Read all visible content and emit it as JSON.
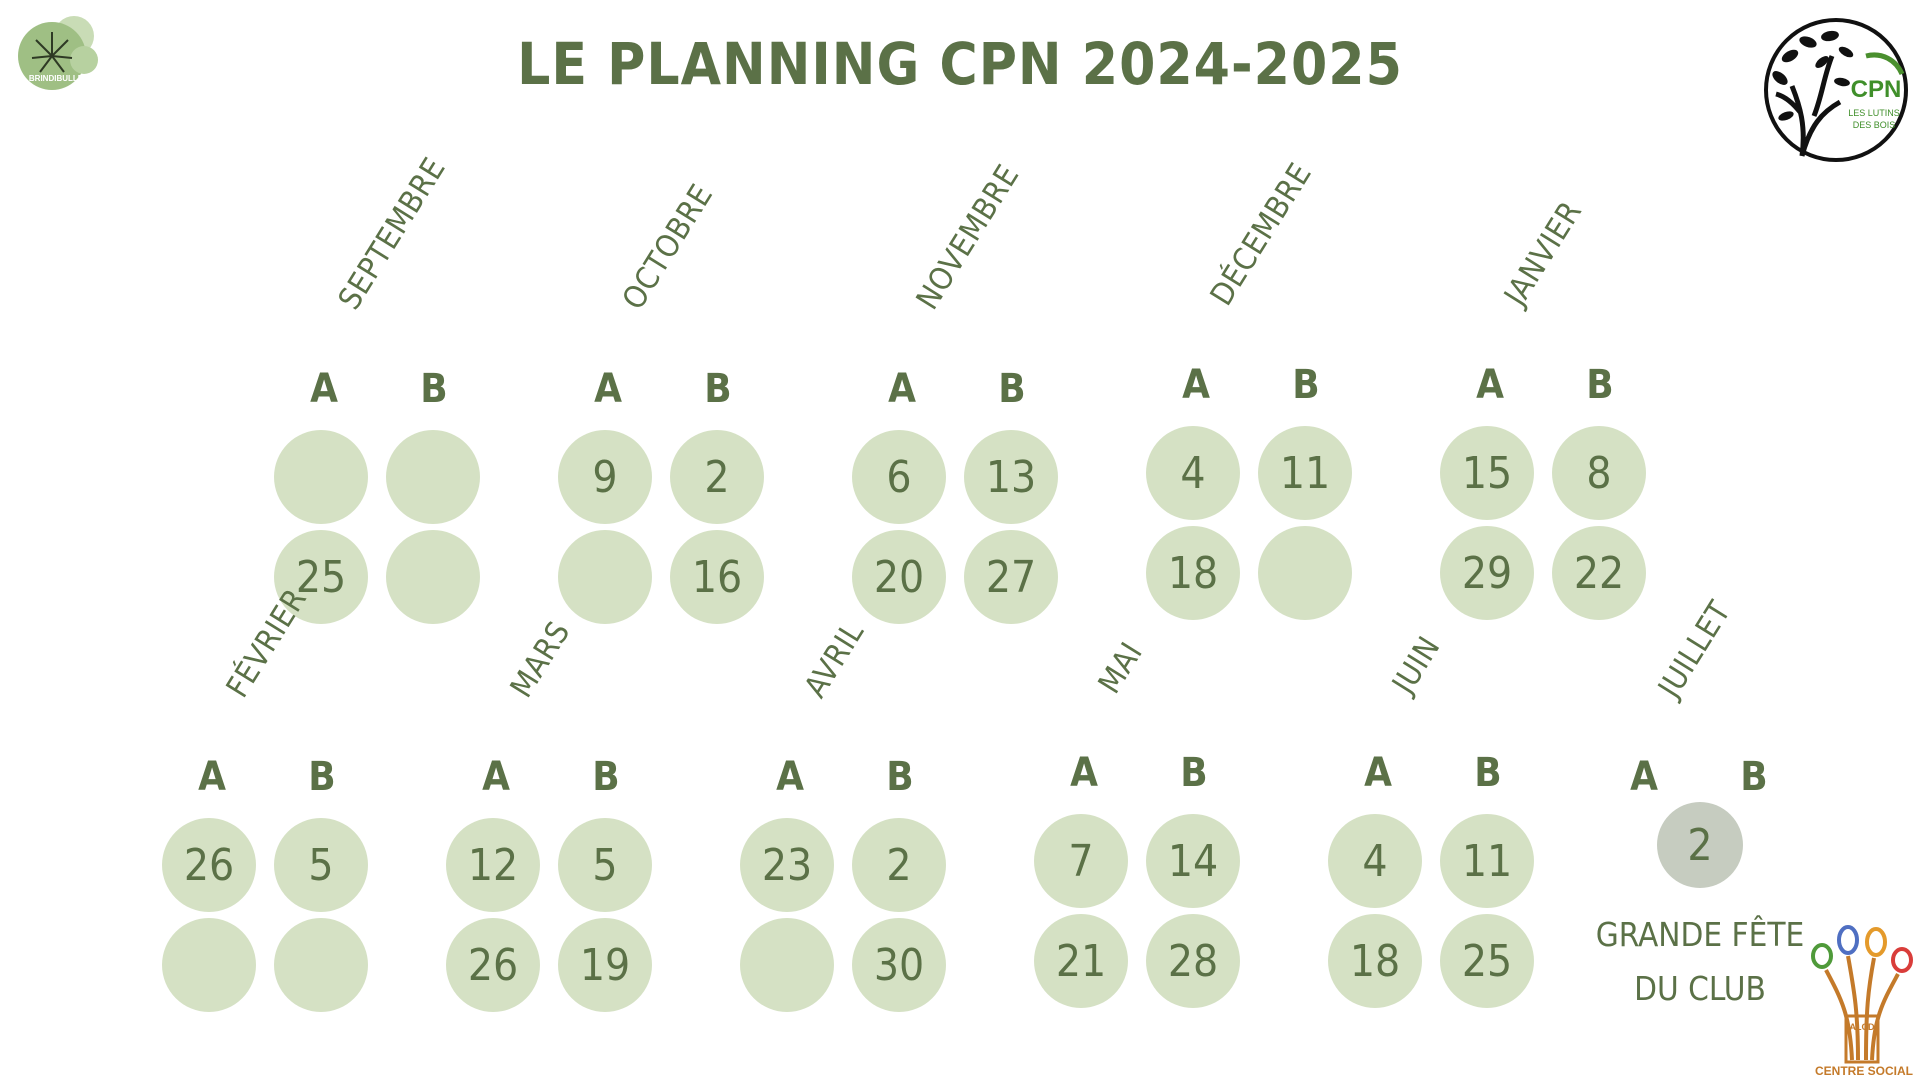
{
  "title": "LE PLANNING CPN 2024-2025",
  "logos": {
    "left_text": "BRINDIBULLE",
    "right_big": "CPN",
    "right_small_1": "LES LUTINS",
    "right_small_2": "DES BOIS",
    "bottom_mark": "ALCD",
    "bottom_text": "CENTRE SOCIAL"
  },
  "columns": {
    "a": "A",
    "b": "B"
  },
  "months": [
    {
      "name": "SEPTEMBRE",
      "a1": "",
      "b1": "",
      "a2": "25",
      "b2": ""
    },
    {
      "name": "OCTOBRE",
      "a1": "9",
      "b1": "2",
      "a2": "",
      "b2": "16"
    },
    {
      "name": "NOVEMBRE",
      "a1": "6",
      "b1": "13",
      "a2": "20",
      "b2": "27"
    },
    {
      "name": "DÉCEMBRE",
      "a1": "4",
      "b1": "11",
      "a2": "18",
      "b2": ""
    },
    {
      "name": "JANVIER",
      "a1": "15",
      "b1": "8",
      "a2": "29",
      "b2": "22"
    },
    {
      "name": "FÉVRIER",
      "a1": "26",
      "b1": "5",
      "a2": "",
      "b2": ""
    },
    {
      "name": "MARS",
      "a1": "12",
      "b1": "5",
      "a2": "26",
      "b2": "19"
    },
    {
      "name": "AVRIL",
      "a1": "23",
      "b1": "2",
      "a2": "",
      "b2": "30"
    },
    {
      "name": "MAI",
      "a1": "7",
      "b1": "14",
      "a2": "21",
      "b2": "28"
    },
    {
      "name": "JUIN",
      "a1": "4",
      "b1": "11",
      "a2": "18",
      "b2": "25"
    },
    {
      "name": "JUILLET",
      "center": "2",
      "event_line1": "GRANDE FÊTE",
      "event_line2": "DU CLUB"
    }
  ],
  "colors": {
    "text": "#5b7147",
    "circle": "#d5e1c4",
    "circle_special": "#c6ccc0"
  }
}
